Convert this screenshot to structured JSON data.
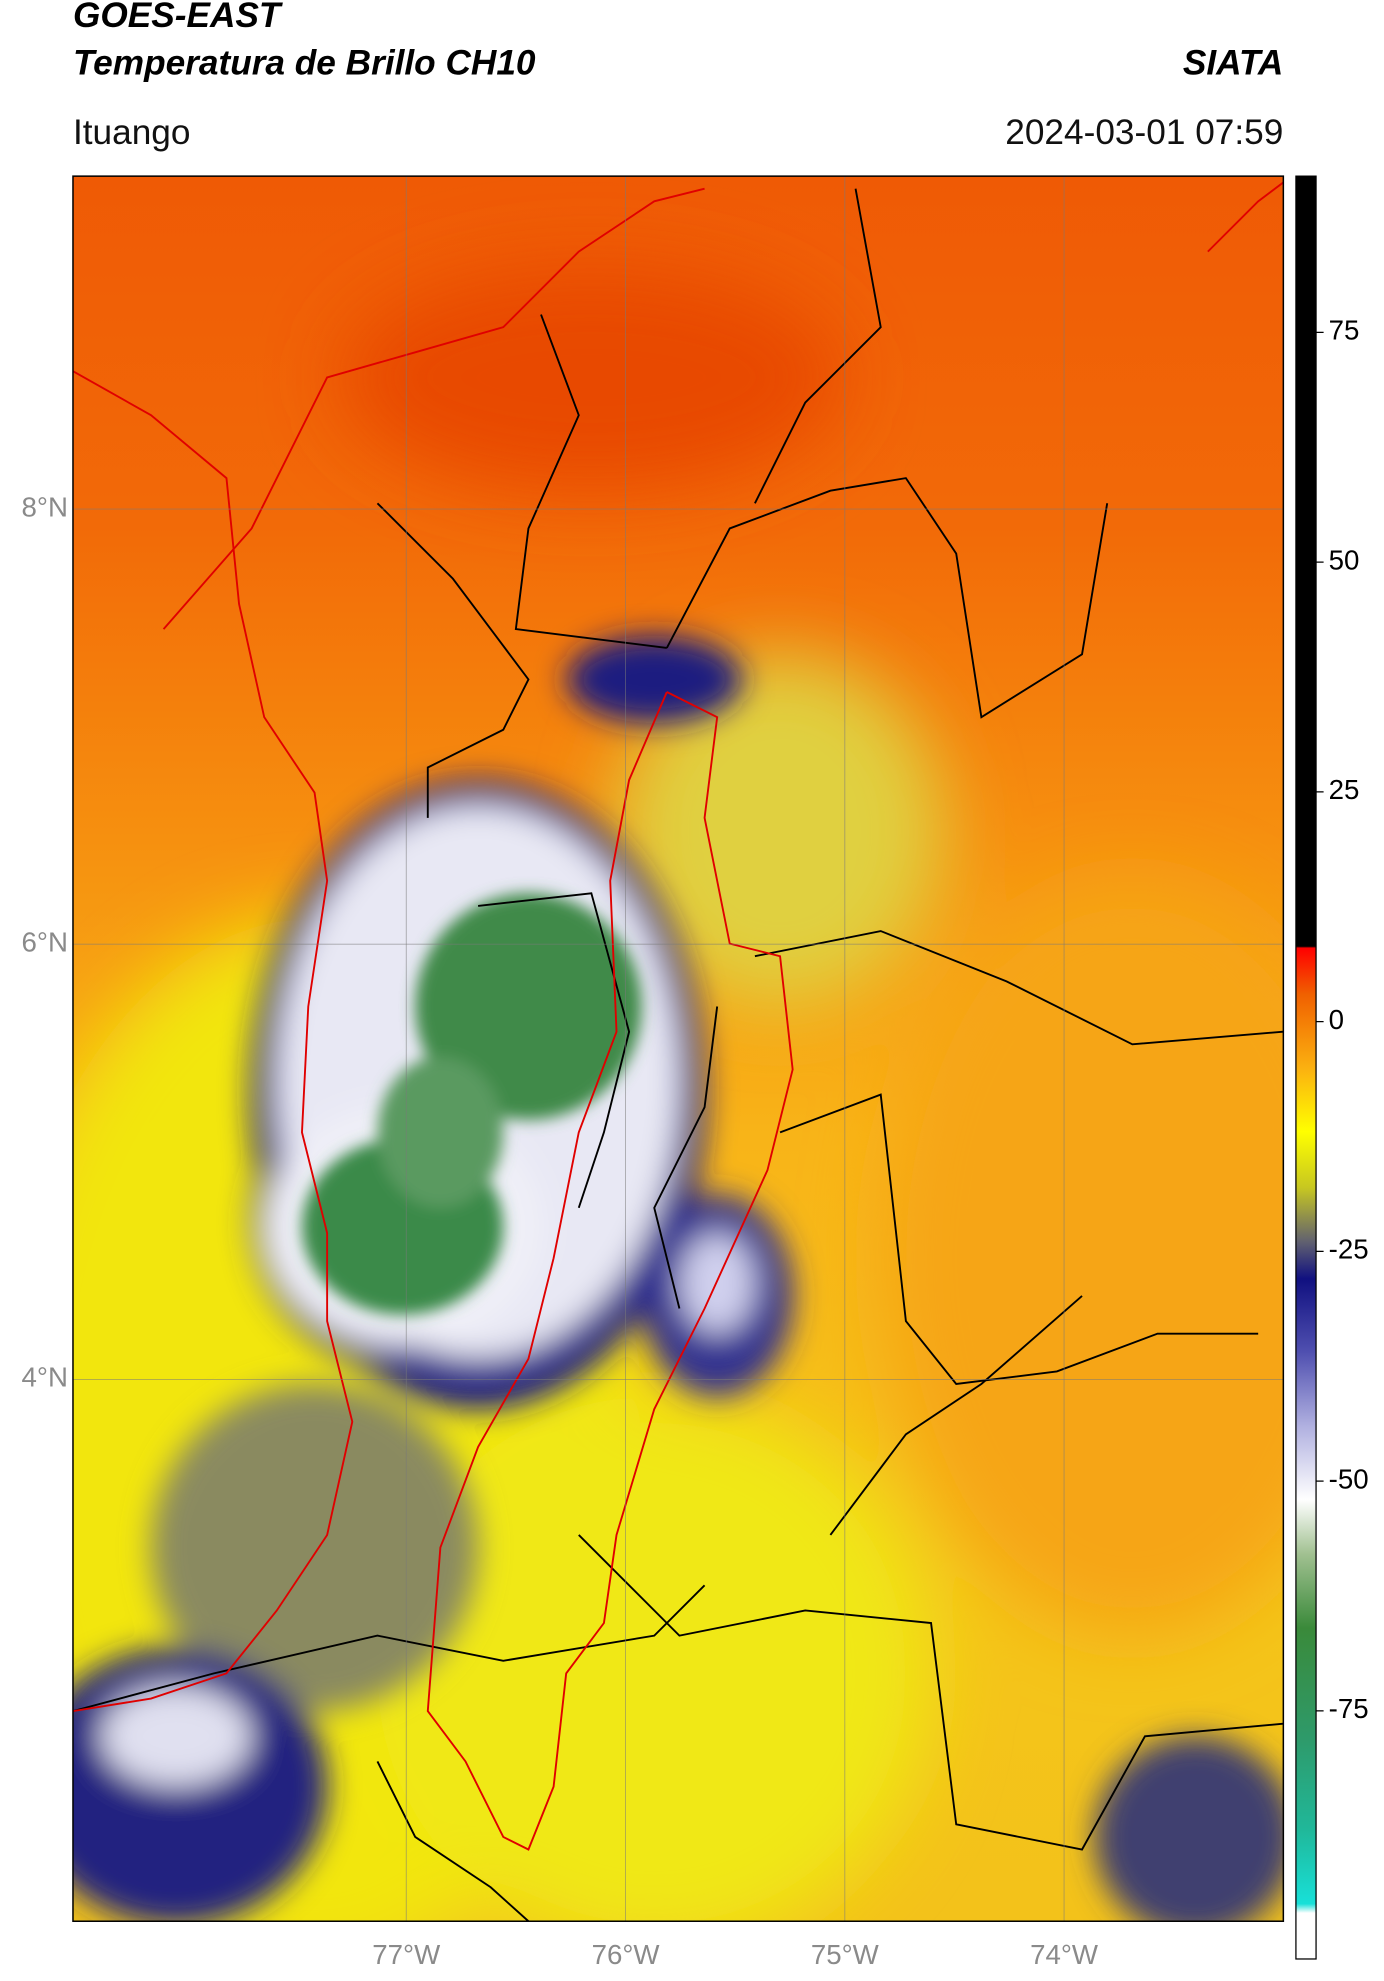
{
  "header": {
    "satellite": "GOES-EAST",
    "product": "Temperatura de Brillo CH10",
    "org": "SIATA",
    "location": "Ituango",
    "datetime": "2024-03-01 07:59"
  },
  "map": {
    "lon_range": [
      -78.52,
      -73.0
    ],
    "lat_range": [
      1.51,
      9.53
    ],
    "lon_ticks": [
      {
        "value": -77,
        "label": "77°W"
      },
      {
        "value": -76,
        "label": "76°W"
      },
      {
        "value": -75,
        "label": "75°W"
      },
      {
        "value": -74,
        "label": "74°W"
      }
    ],
    "lat_ticks": [
      {
        "value": 8,
        "label": "8°N"
      },
      {
        "value": 6,
        "label": "6°N"
      },
      {
        "value": 4,
        "label": "4°N"
      }
    ],
    "grid": true
  },
  "colorbar": {
    "range": [
      -102,
      92
    ],
    "ticks": [
      75,
      50,
      25,
      0,
      -25,
      -50,
      -75
    ],
    "stops": [
      [
        -102,
        "#ffffff"
      ],
      [
        -97,
        "#ffffff"
      ],
      [
        -96,
        "#18e0d8"
      ],
      [
        -88,
        "#20b89a"
      ],
      [
        -78,
        "#2e9a6a"
      ],
      [
        -66,
        "#3a8a3a"
      ],
      [
        -58,
        "#a0c090"
      ],
      [
        -52,
        "#ffffff"
      ],
      [
        -44,
        "#b0b0e0"
      ],
      [
        -36,
        "#5050b0"
      ],
      [
        -28,
        "#101080"
      ],
      [
        -24,
        "#606070"
      ],
      [
        -18,
        "#c8c820"
      ],
      [
        -12,
        "#ffff00"
      ],
      [
        -5,
        "#fbb010"
      ],
      [
        3,
        "#f06000"
      ],
      [
        8,
        "#ff0000"
      ],
      [
        8.2,
        "#000000"
      ],
      [
        92,
        "#000000"
      ]
    ]
  }
}
